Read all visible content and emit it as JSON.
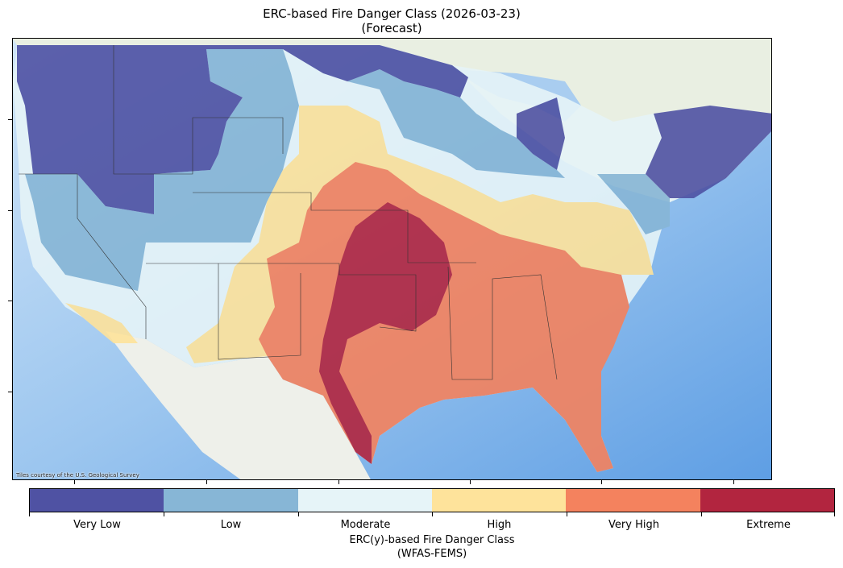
{
  "title": {
    "line1": "ERC-based Fire Danger Class (2026-03-23)",
    "line2": "(Forecast)"
  },
  "map": {
    "attribution": "Tiles courtesy of the U.S. Geological Survey"
  },
  "legend": {
    "classes": [
      {
        "label": "Very Low",
        "color": "#4f52a3"
      },
      {
        "label": "Low",
        "color": "#87b6d6"
      },
      {
        "label": "Moderate",
        "color": "#e6f4f8"
      },
      {
        "label": "High",
        "color": "#fee39b"
      },
      {
        "label": "Very High",
        "color": "#f4825e"
      },
      {
        "label": "Extreme",
        "color": "#b2253f"
      }
    ],
    "title_line1": "ERC(y)-based Fire Danger Class",
    "title_line2": "(WFAS-FEMS)"
  }
}
